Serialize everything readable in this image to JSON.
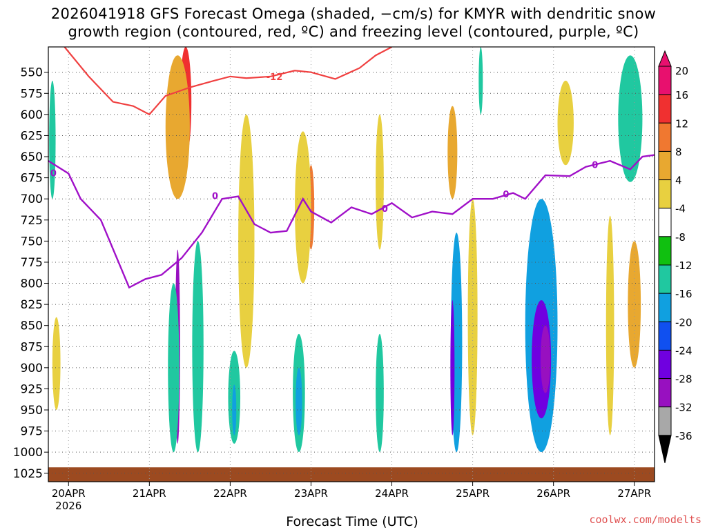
{
  "chart_data": {
    "type": "heatmap",
    "title_line1": "2026041918 GFS Forecast Omega (shaded, −cm/s) for KMYR with dendritic snow",
    "title_line2": "growth region (contoured, red, ºC) and freezing level (contoured, purple, ºC)",
    "xlabel": "Forecast Time (UTC)",
    "credit": "coolwx.com/modelts",
    "x_ticks": [
      {
        "label": "20APR",
        "sub": "2026",
        "day": 0
      },
      {
        "label": "21APR",
        "sub": "",
        "day": 1
      },
      {
        "label": "22APR",
        "sub": "",
        "day": 2
      },
      {
        "label": "23APR",
        "sub": "",
        "day": 3
      },
      {
        "label": "24APR",
        "sub": "",
        "day": 4
      },
      {
        "label": "25APR",
        "sub": "",
        "day": 5
      },
      {
        "label": "26APR",
        "sub": "",
        "day": 6
      },
      {
        "label": "27APR",
        "sub": "",
        "day": 7
      }
    ],
    "x_range_days": [
      -0.25,
      7.25
    ],
    "y_levels": [
      550,
      575,
      600,
      625,
      650,
      675,
      700,
      725,
      750,
      775,
      800,
      825,
      850,
      875,
      900,
      925,
      950,
      975,
      1000,
      1025
    ],
    "y_range_hpa": [
      520,
      1035
    ],
    "colorbar": {
      "labels": [
        "20",
        "16",
        "12",
        "8",
        "4",
        "-4",
        "-8",
        "-12",
        "-16",
        "-20",
        "-24",
        "-28",
        "-32",
        "-36"
      ],
      "colors": [
        "#e8106e",
        "#f03030",
        "#f07830",
        "#e8a830",
        "#e8d040",
        "#ffffff",
        "#10c010",
        "#20c8a0",
        "#10a0e0",
        "#1050f0",
        "#7000e0",
        "#9810c0",
        "#a8a8a8",
        "#000000"
      ]
    },
    "omega_cells": [
      {
        "day": 1.45,
        "p1": 520,
        "p2": 650,
        "w": 0.14,
        "v": 16
      },
      {
        "day": 1.35,
        "p1": 530,
        "p2": 700,
        "w": 0.3,
        "v": 8
      },
      {
        "day": 1.35,
        "p1": 760,
        "p2": 990,
        "w": 0.06,
        "v": -28
      },
      {
        "day": 1.6,
        "p1": 780,
        "p2": 990,
        "w": 0.05,
        "v": -20
      },
      {
        "day": 1.3,
        "p1": 800,
        "p2": 1000,
        "w": 0.14,
        "v": -10
      },
      {
        "day": 1.6,
        "p1": 750,
        "p2": 1000,
        "w": 0.14,
        "v": -10
      },
      {
        "day": 2.2,
        "p1": 620,
        "p2": 800,
        "w": 0.06,
        "v": 12
      },
      {
        "day": 2.2,
        "p1": 600,
        "p2": 900,
        "w": 0.2,
        "v": 6
      },
      {
        "day": 2.05,
        "p1": 880,
        "p2": 990,
        "w": 0.15,
        "v": -10
      },
      {
        "day": 2.05,
        "p1": 920,
        "p2": 980,
        "w": 0.05,
        "v": -14
      },
      {
        "day": 3.0,
        "p1": 660,
        "p2": 760,
        "w": 0.08,
        "v": 12
      },
      {
        "day": 2.9,
        "p1": 620,
        "p2": 800,
        "w": 0.2,
        "v": 6
      },
      {
        "day": 2.85,
        "p1": 860,
        "p2": 1000,
        "w": 0.15,
        "v": -10
      },
      {
        "day": 2.85,
        "p1": 900,
        "p2": 980,
        "w": 0.08,
        "v": -14
      },
      {
        "day": 3.85,
        "p1": 600,
        "p2": 760,
        "w": 0.1,
        "v": 6
      },
      {
        "day": 3.85,
        "p1": 860,
        "p2": 1000,
        "w": 0.1,
        "v": -10
      },
      {
        "day": 4.75,
        "p1": 590,
        "p2": 700,
        "w": 0.12,
        "v": 8
      },
      {
        "day": 4.8,
        "p1": 740,
        "p2": 1000,
        "w": 0.14,
        "v": -14
      },
      {
        "day": 4.75,
        "p1": 820,
        "p2": 980,
        "w": 0.04,
        "v": -24
      },
      {
        "day": 5.0,
        "p1": 760,
        "p2": 820,
        "w": 0.1,
        "v": 16
      },
      {
        "day": 5.0,
        "p1": 700,
        "p2": 980,
        "w": 0.12,
        "v": 6
      },
      {
        "day": 5.85,
        "p1": 700,
        "p2": 1000,
        "w": 0.4,
        "v": -12
      },
      {
        "day": 5.85,
        "p1": 760,
        "p2": 990,
        "w": 0.34,
        "v": -16
      },
      {
        "day": 5.85,
        "p1": 820,
        "p2": 960,
        "w": 0.24,
        "v": -24
      },
      {
        "day": 5.9,
        "p1": 850,
        "p2": 930,
        "w": 0.12,
        "v": -28
      },
      {
        "day": 6.7,
        "p1": 720,
        "p2": 980,
        "w": 0.1,
        "v": 6
      },
      {
        "day": 7.0,
        "p1": 750,
        "p2": 900,
        "w": 0.16,
        "v": 8
      },
      {
        "day": 6.95,
        "p1": 530,
        "p2": 680,
        "w": 0.3,
        "v": -10
      },
      {
        "day": 6.15,
        "p1": 560,
        "p2": 660,
        "w": 0.2,
        "v": 6
      },
      {
        "day": -0.15,
        "p1": 840,
        "p2": 950,
        "w": 0.1,
        "v": 6
      },
      {
        "day": -0.2,
        "p1": 560,
        "p2": 700,
        "w": 0.08,
        "v": -8
      },
      {
        "day": 5.1,
        "p1": 520,
        "p2": 600,
        "w": 0.04,
        "v": -8
      }
    ],
    "freezing_level": {
      "label": "0",
      "days": [
        -0.25,
        0.0,
        0.15,
        0.4,
        0.75,
        0.95,
        1.15,
        1.4,
        1.65,
        1.9,
        2.1,
        2.3,
        2.5,
        2.7,
        2.9,
        3.0,
        3.25,
        3.5,
        3.75,
        4.0,
        4.25,
        4.5,
        4.75,
        5.0,
        5.25,
        5.5,
        5.65,
        5.9,
        6.2,
        6.4,
        6.7,
        6.95,
        7.1,
        7.25
      ],
      "hpa": [
        655,
        670,
        700,
        725,
        805,
        795,
        790,
        770,
        740,
        700,
        697,
        730,
        740,
        738,
        700,
        715,
        728,
        710,
        718,
        705,
        722,
        715,
        718,
        700,
        700,
        693,
        700,
        672,
        673,
        662,
        655,
        665,
        650,
        648
      ]
    },
    "dgz_contour": {
      "label": "-12",
      "days": [
        -0.05,
        0.25,
        0.55,
        0.8,
        1.0,
        1.2,
        1.5,
        1.8,
        2.0,
        2.2,
        2.5,
        2.8,
        3.0,
        3.3,
        3.6,
        3.8,
        4.0
      ],
      "hpa": [
        520,
        555,
        585,
        590,
        600,
        578,
        568,
        560,
        555,
        557,
        555,
        548,
        550,
        558,
        545,
        530,
        520
      ]
    }
  }
}
